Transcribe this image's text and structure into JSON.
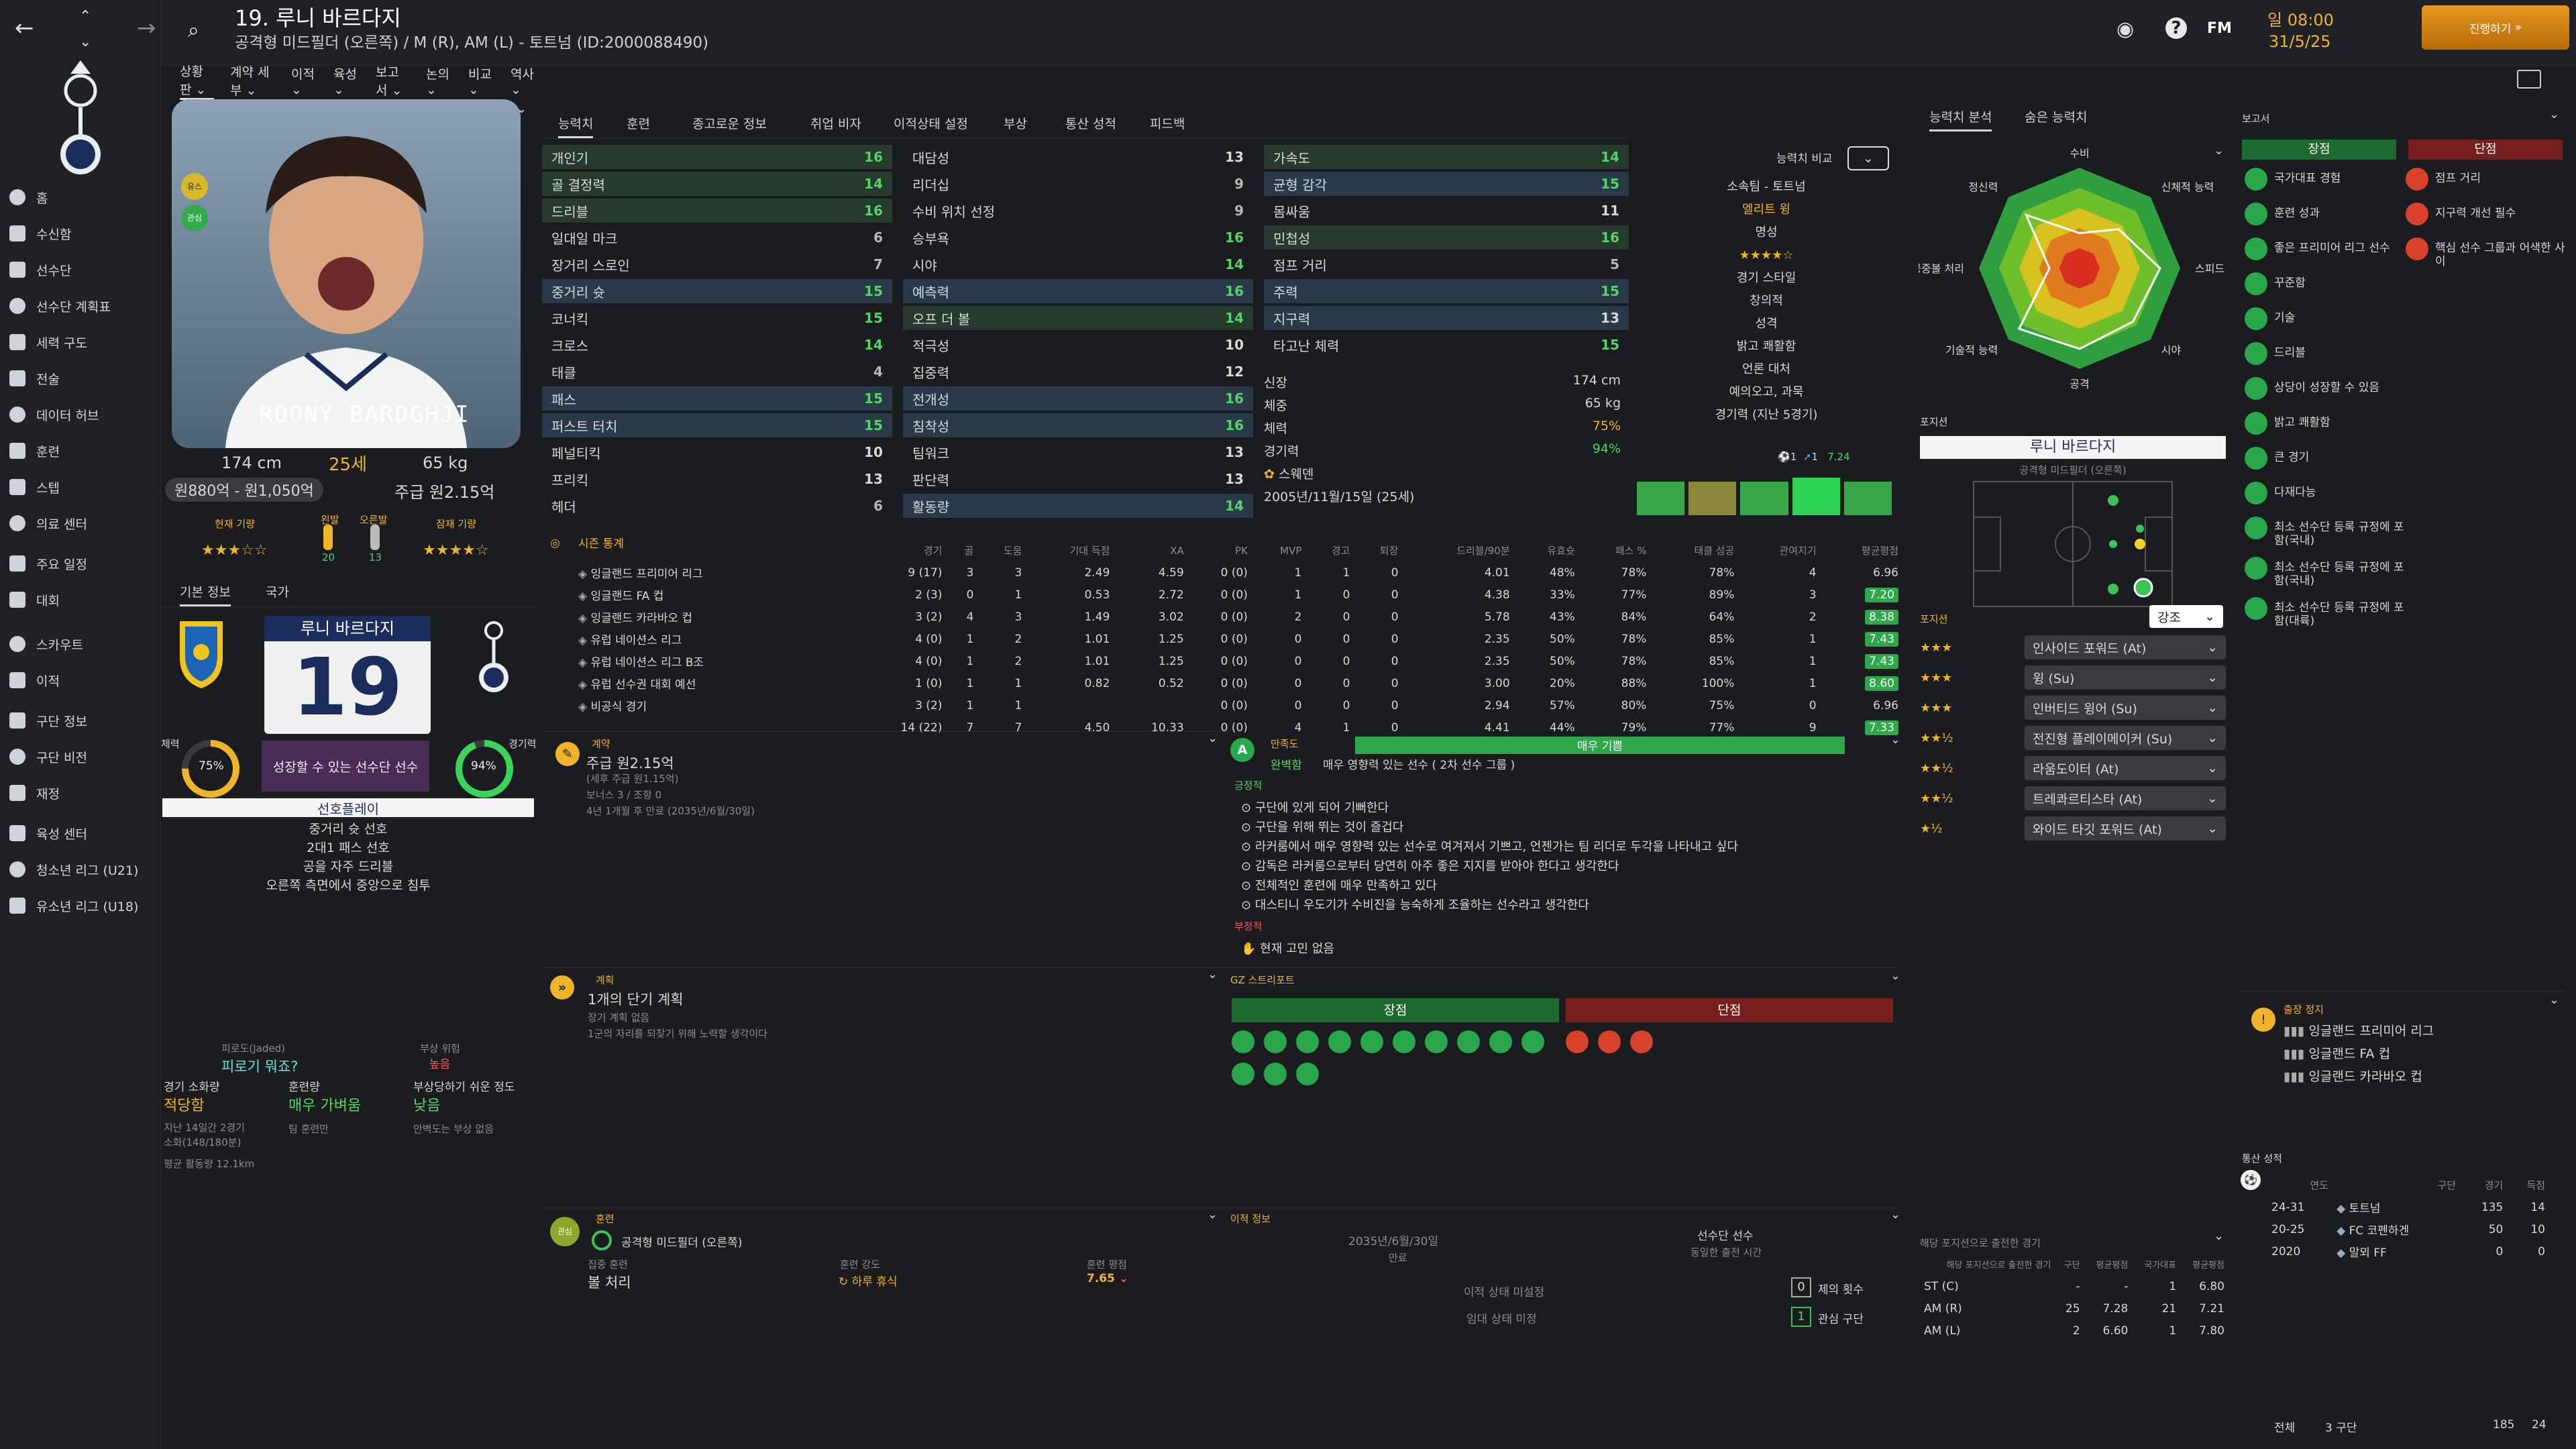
{
  "header": {
    "player_number_name": "19. 루니 바르다지",
    "subtitle": "공격형 미드필더 (오른쪽) / M (R), AM (L) - 토트넘 (ID:2000088490)",
    "fm_label": "FM",
    "time": "일 08:00",
    "date": "31/5/25",
    "continue_label": "진행하기"
  },
  "sidebar": {
    "items": [
      {
        "label": "홈",
        "icon": "home-icon"
      },
      {
        "label": "수신함",
        "icon": "inbox-icon"
      },
      {
        "label": "선수단",
        "icon": "squad-icon"
      },
      {
        "label": "선수단 계획표",
        "icon": "squad-planner-icon"
      },
      {
        "label": "세력 구도",
        "icon": "dynamics-icon"
      },
      {
        "label": "전술",
        "icon": "tactics-icon"
      },
      {
        "label": "데이터 허브",
        "icon": "data-hub-icon"
      },
      {
        "label": "훈련",
        "icon": "training-icon"
      },
      {
        "label": "스텝",
        "icon": "staff-icon"
      },
      {
        "label": "의료 센터",
        "icon": "medical-icon"
      },
      {
        "label": "주요 일정",
        "icon": "schedule-icon"
      },
      {
        "label": "대회",
        "icon": "competitions-icon"
      },
      {
        "label": "스카우트",
        "icon": "scouting-icon"
      },
      {
        "label": "이적",
        "icon": "transfers-icon"
      },
      {
        "label": "구단 정보",
        "icon": "club-info-icon"
      },
      {
        "label": "구단 비전",
        "icon": "club-vision-icon"
      },
      {
        "label": "재정",
        "icon": "finances-icon"
      },
      {
        "label": "육성 센터",
        "icon": "dev-centre-icon"
      },
      {
        "label": "청소년 리그 (U21)",
        "icon": "u21-icon"
      },
      {
        "label": "유소년 리그 (U18)",
        "icon": "u18-icon"
      }
    ]
  },
  "subnav": [
    "상황판 ⌄",
    "계약 세부 ⌄",
    "이적 ⌄",
    "육성 ⌄",
    "보고서 ⌄",
    "논의 ⌄",
    "비교 ⌄",
    "역사 ⌄"
  ],
  "profile": {
    "shirt_name": "ROONY BARDGHJI",
    "height": "174 cm",
    "age": "25세",
    "weight": "65 kg",
    "value": "원880억 - 원1,050억",
    "wage": "주급 원2.15억",
    "current_ability_label": "현재 기량",
    "potential_label": "잠재 기량",
    "left_foot_label": "왼발",
    "right_foot_label": "오른발",
    "left_foot_value": "20",
    "right_foot_value": "13",
    "badge1": "유스",
    "badge2": "관심"
  },
  "info_tabs": [
    "기본 정보",
    "국가"
  ],
  "info_card": {
    "card_name": "루니 바르다지",
    "card_number": "19",
    "fitness_label": "체력",
    "fitness_value": "75%",
    "match_label": "경기력",
    "match_value": "94%",
    "role_text": "성장할 수 있는 선수단 선수",
    "playstyle_title": "선호플레이",
    "playstyle": [
      "중거리 슛 선호",
      "2대1 패스 선호",
      "공을 자주 드리블",
      "오른쪽 측면에서 중앙으로 침투"
    ]
  },
  "condition": {
    "jaded_label": "피로도(Jaded)",
    "jaded_value": "피로기 뭐죠?",
    "injury_risk_label": "부상 위험",
    "injury_risk_value": "높음",
    "load_label": "경기 소화량",
    "load_value": "적당함",
    "training_label": "훈련량",
    "training_value": "매우 가벼움",
    "proneness_label": "부상당하기 쉬운 정도",
    "proneness_value": "낮음",
    "l1": "지난 14일간 2경기",
    "l2": "소화(148/180분)",
    "l3": "팀 훈련만",
    "l4": "안벽도는 부상 없음",
    "l5": "평균 활동량 12.1km"
  },
  "attr_tabs": [
    "능력치",
    "훈련",
    "종고로운 정보",
    "취업 비자",
    "이적상태 설정",
    "부상",
    "통산 성적",
    "피드백"
  ],
  "attributes": {
    "technical": [
      {
        "name": "개인기",
        "value": "16"
      },
      {
        "name": "골 결정력",
        "value": "14"
      },
      {
        "name": "드리블",
        "value": "16"
      },
      {
        "name": "일대일 마크",
        "value": "6"
      },
      {
        "name": "장거리 스로인",
        "value": "7"
      },
      {
        "name": "중거리 슛",
        "value": "15"
      },
      {
        "name": "코너킥",
        "value": "15"
      },
      {
        "name": "크로스",
        "value": "14"
      },
      {
        "name": "태클",
        "value": "4"
      },
      {
        "name": "패스",
        "value": "15"
      },
      {
        "name": "퍼스트 터치",
        "value": "15"
      },
      {
        "name": "페널티킥",
        "value": "10"
      },
      {
        "name": "프리킥",
        "value": "13"
      },
      {
        "name": "헤더",
        "value": "6"
      }
    ],
    "mental": [
      {
        "name": "대담성",
        "value": "13"
      },
      {
        "name": "리더십",
        "value": "9"
      },
      {
        "name": "수비 위치 선정",
        "value": "9"
      },
      {
        "name": "승부욕",
        "value": "16"
      },
      {
        "name": "시야",
        "value": "14"
      },
      {
        "name": "예측력",
        "value": "16"
      },
      {
        "name": "오프 더 볼",
        "value": "14"
      },
      {
        "name": "적극성",
        "value": "10"
      },
      {
        "name": "집중력",
        "value": "12"
      },
      {
        "name": "전개성",
        "value": "16"
      },
      {
        "name": "침착성",
        "value": "16"
      },
      {
        "name": "팀워크",
        "value": "13"
      },
      {
        "name": "판단력",
        "value": "13"
      },
      {
        "name": "활동량",
        "value": "14"
      }
    ],
    "physical": [
      {
        "name": "가속도",
        "value": "14"
      },
      {
        "name": "균형 감각",
        "value": "15"
      },
      {
        "name": "몸싸움",
        "value": "11"
      },
      {
        "name": "민첩성",
        "value": "16"
      },
      {
        "name": "점프 거리",
        "value": "5"
      },
      {
        "name": "주력",
        "value": "15"
      },
      {
        "name": "지구력",
        "value": "13"
      },
      {
        "name": "타고난 체력",
        "value": "15"
      }
    ]
  },
  "bio": {
    "height_label": "신장",
    "height_value": "174 cm",
    "weight_label": "체중",
    "weight_value": "65 kg",
    "fitness_label": "체력",
    "fitness_value": "75%",
    "match_label": "경기력",
    "match_value": "94%",
    "nation": "스웨덴",
    "dob": "2005년/11월/15일 (25세)"
  },
  "compare": {
    "label": "능력치 비교",
    "club": "소속팀 - 토트넘",
    "status": "엘리트 윙",
    "fame_label": "명성",
    "style_label": "경기 스타일",
    "style_value": "창의적",
    "personality_label": "성격",
    "personality_value": "밝고 쾌활함",
    "media_label": "언론 대처",
    "media_value": "예의오고, 과묵",
    "form_label": "경기력 (지난 5경기)",
    "form_goals": "1",
    "form_assists": "1",
    "form_rating": "7.24"
  },
  "season_stats": {
    "title": "시즌 통계",
    "headers": [
      "",
      "경기",
      "골",
      "도움",
      "기대 득점",
      "XA",
      "PK",
      "MVP",
      "경고",
      "퇴장",
      "드리블/90분",
      "유효슛",
      "패스 %",
      "태클 성공",
      "관여지기",
      "평균평점"
    ],
    "rows": [
      {
        "comp": "잉글랜드 프리미어 리그",
        "cells": [
          "9 (17)",
          "3",
          "3",
          "2.49",
          "4.59",
          "0 (0)",
          "1",
          "1",
          "0",
          "4.01",
          "48%",
          "78%",
          "78%",
          "4"
        ],
        "rating": "6.96"
      },
      {
        "comp": "잉글랜드 FA 컵",
        "cells": [
          "2 (3)",
          "0",
          "1",
          "0.53",
          "2.72",
          "0 (0)",
          "1",
          "0",
          "0",
          "4.38",
          "33%",
          "77%",
          "89%",
          "3"
        ],
        "rating": "7.20"
      },
      {
        "comp": "잉글랜드 카라바오 컵",
        "cells": [
          "3 (2)",
          "4",
          "3",
          "1.49",
          "3.02",
          "0 (0)",
          "2",
          "0",
          "0",
          "5.78",
          "43%",
          "84%",
          "64%",
          "2"
        ],
        "rating": "8.38"
      },
      {
        "comp": "유럽 네이션스 리그",
        "cells": [
          "4 (0)",
          "1",
          "2",
          "1.01",
          "1.25",
          "0 (0)",
          "0",
          "0",
          "0",
          "2.35",
          "50%",
          "78%",
          "85%",
          "1"
        ],
        "rating": "7.43"
      },
      {
        "comp": "유럽 네이션스 리그 B조",
        "cells": [
          "4 (0)",
          "1",
          "2",
          "1.01",
          "1.25",
          "0 (0)",
          "0",
          "0",
          "0",
          "2.35",
          "50%",
          "78%",
          "85%",
          "1"
        ],
        "rating": "7.43"
      },
      {
        "comp": "유럽 선수권 대회 예선",
        "cells": [
          "1 (0)",
          "1",
          "1",
          "0.82",
          "0.52",
          "0 (0)",
          "0",
          "0",
          "0",
          "3.00",
          "20%",
          "88%",
          "100%",
          "1"
        ],
        "rating": "8.60"
      },
      {
        "comp": "비공식 경기",
        "cells": [
          "3 (2)",
          "1",
          "1",
          "",
          "",
          "0 (0)",
          "0",
          "0",
          "0",
          "2.94",
          "57%",
          "80%",
          "75%",
          "0"
        ],
        "rating": "6.96"
      }
    ],
    "total": {
      "cells": [
        "14 (22)",
        "7",
        "7",
        "4.50",
        "10.33",
        "0 (0)",
        "4",
        "1",
        "0",
        "4.41",
        "44%",
        "79%",
        "77%",
        "9"
      ],
      "rating": "7.33"
    }
  },
  "contract": {
    "title": "계약",
    "wage": "주급 원2.15억",
    "note": "(세후 주급 원1.15억)",
    "bonus": "보너스 3 / 조항 0",
    "expiry": "4년 1개월 후 만료 (2035년/6월/30일)"
  },
  "happiness": {
    "title": "만족도",
    "level": "완벽함",
    "bar_label": "매우 기쁨",
    "desc": "매우 영향력 있는 선수 ( 2차 선수 그룹 )",
    "positive_title": "긍정적",
    "positives": [
      "구단에 있게 되어 기뻐한다",
      "구단을 위해 뛰는 것이 즐겁다",
      "라커룸에서 매우 영향력 있는 선수로 여겨져서 기쁘고, 언젠가는 팀 리더로 두각을 나타내고 싶다",
      "감독은 라커룸으로부터 당연히 아주 좋은 지지를 받아야 한다고 생각한다",
      "전체적인 훈련에 매우 만족하고 있다",
      "대스티니 우도기가 수비진을 능숙하게 조율하는 선수라고 생각한다"
    ],
    "negative_title": "부정적",
    "negatives": [
      "현재 고민 없음"
    ]
  },
  "plans": {
    "title": "계획",
    "headline": "1개의 단기 계획",
    "long_term": "장기 계획 없음",
    "short_term": "1군의 자리를 되찾기 위해 노력할 생각이다"
  },
  "gz_report": {
    "title": "GZ 스트리포트",
    "pros_label": "장점",
    "cons_label": "단점"
  },
  "training": {
    "title": "훈련",
    "position": "공격형 미드필더 (오른쪽)",
    "focus_label": "집중 훈련",
    "focus_value": "볼 처리",
    "intensity_label": "훈련 강도",
    "intensity_value": "하루 휴식",
    "rating_label": "훈련 평점",
    "rating_value": "7.65"
  },
  "transfer": {
    "title": "이적 정보",
    "expiry_date": "2035년/6월/30일",
    "expiry_label": "만료",
    "squad_label": "선수단 선수",
    "squad_sub": "동일한 출전 시간",
    "status1": "이적 상태 미설정",
    "status2": "임대 상태 미정",
    "offers_count": "0",
    "offers_label": "제의 횟수",
    "interest_count": "1",
    "interest_label": "관심 구단"
  },
  "radar": {
    "tabs": [
      "능력치 분석",
      "숨은 능력치"
    ],
    "labels": [
      "수비",
      "신체적 능력",
      "스피드",
      "시야",
      "공격",
      "기술적 능력",
      "공중볼 처리",
      "정신력"
    ],
    "values": [
      0.35,
      0.55,
      0.8,
      0.75,
      0.8,
      0.85,
      0.3,
      0.75
    ]
  },
  "positions": {
    "title": "포지션",
    "player_name": "루니 바르다지",
    "player_pos": "공격형 미드필더 (오른쪽)",
    "roles_title": "포지션",
    "roles_dropdown": "강조",
    "roles": [
      {
        "name": "인사이드 포워드 (At)",
        "stars": 3
      },
      {
        "name": "윙 (Su)",
        "stars": 3
      },
      {
        "name": "인버티드 윙어 (Su)",
        "stars": 3
      },
      {
        "name": "전진형 플레이메이커 (Su)",
        "stars": 2.5
      },
      {
        "name": "라움도이터 (At)",
        "stars": 2.5
      },
      {
        "name": "트레콰르티스타 (At)",
        "stars": 2.5
      },
      {
        "name": "와이드 타깃 포워드 (At)",
        "stars": 1.5
      }
    ]
  },
  "pos_games": {
    "title": "해당 포지션으로 출전한 경기",
    "headers": [
      "해당 포지션으로 출전한 경기",
      "구단",
      "평균평점",
      "국가대표",
      "평균평점"
    ],
    "rows": [
      {
        "pos": "ST (C)",
        "club": "-",
        "club_rating": "-",
        "intl": "1",
        "intl_rating": "6.80"
      },
      {
        "pos": "AM (R)",
        "club": "25",
        "club_rating": "7.28",
        "intl": "21",
        "intl_rating": "7.21"
      },
      {
        "pos": "AM (L)",
        "club": "2",
        "club_rating": "6.60",
        "intl": "1",
        "intl_rating": "7.80"
      }
    ]
  },
  "reports": {
    "title": "보고서",
    "pros_label": "장점",
    "cons_label": "단점",
    "pros": [
      "국가대표 경험",
      "훈련 성과",
      "좋은 프리미어 리그 선수",
      "꾸준함",
      "기술",
      "드리블",
      "상당이 성장할 수 있음",
      "밝고 쾌활함",
      "큰 경기",
      "다재다능",
      "최소 선수단 등록 규정에 포함(국내)",
      "최소 선수단 등록 규정에 포함(국내)",
      "최소 선수단 등록 규정에 포함(대륙)"
    ],
    "cons": [
      "점프 거리",
      "지구력 개선 필수",
      "핵심 선수 그룹과 어색한 사이"
    ]
  },
  "suspension": {
    "title": "출장 정지",
    "items": [
      "잉글랜드 프리미어 리그",
      "잉글랜드 FA 컵",
      "잉글랜드 카라바오 컵"
    ]
  },
  "career": {
    "title": "통산 성적",
    "headers": [
      "연도",
      "구단",
      "경기",
      "득점"
    ],
    "rows": [
      {
        "year": "24-31",
        "club": "토트넘",
        "apps": "135",
        "goals": "14"
      },
      {
        "year": "20-25",
        "club": "FC 코펜하겐",
        "apps": "50",
        "goals": "10"
      },
      {
        "year": "2020",
        "club": "말뫼 FF",
        "apps": "0",
        "goals": "0"
      }
    ],
    "total_label": "전체",
    "total_clubs": "3 구단",
    "total_apps": "185",
    "total_goals": "24"
  }
}
